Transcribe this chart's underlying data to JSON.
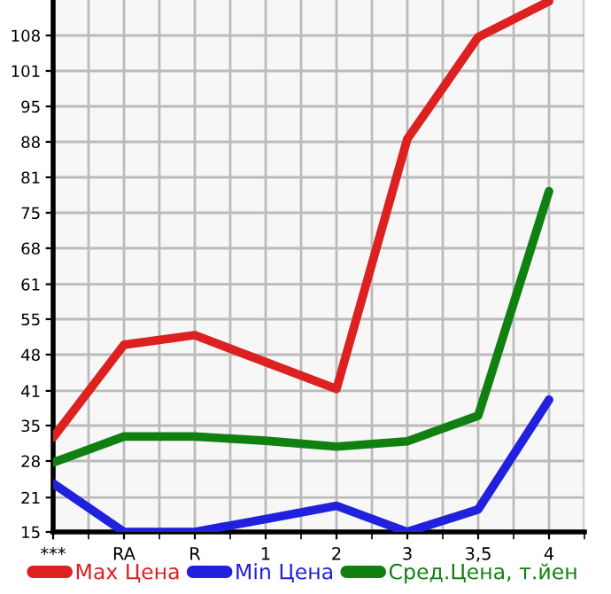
{
  "chart_data": {
    "type": "line",
    "categories": [
      "***",
      "RA",
      "R",
      "1",
      "2",
      "3",
      "3,5",
      "4"
    ],
    "series": [
      {
        "name": "Max Цена",
        "color": "#dd2020",
        "values": [
          32.7,
          50.1,
          51.9,
          null,
          41.8,
          88.7,
          107.8,
          114.5
        ]
      },
      {
        "name": "Min Цена",
        "color": "#2020dd",
        "values": [
          24.1,
          15,
          15,
          17.4,
          19.9,
          15,
          19.2,
          39.8
        ]
      },
      {
        "name": "Сред.Цена, т.йен",
        "color": "#108010",
        "values": [
          28.0,
          32.9,
          32.9,
          32.1,
          31.0,
          32.0,
          36.8,
          78.9
        ]
      }
    ],
    "ylim": [
      15,
      114.75
    ],
    "yticks": [
      15,
      {
        "value": 21.45,
        "label": "21"
      },
      {
        "value": 28.3,
        "label": "28"
      },
      {
        "value": 34.95,
        "label": "35"
      },
      {
        "value": 41.45,
        "label": "41"
      },
      {
        "value": 48.25,
        "label": "48"
      },
      {
        "value": 54.9,
        "label": "55"
      },
      {
        "value": 61.45,
        "label": "61"
      },
      {
        "value": 68.2,
        "label": "68"
      },
      {
        "value": 74.85,
        "label": "75"
      },
      {
        "value": 81.5,
        "label": "81"
      },
      {
        "value": 88.15,
        "label": "88"
      },
      {
        "value": 94.8,
        "label": "95"
      },
      {
        "value": 101.45,
        "label": "101"
      },
      {
        "value": 108.1,
        "label": "108"
      }
    ],
    "grid": true,
    "legend": "bottom",
    "marker": "none",
    "line_style": "solid"
  }
}
